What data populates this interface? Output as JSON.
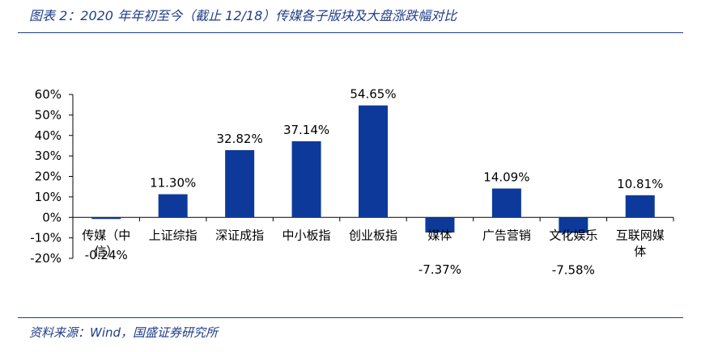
{
  "figure": {
    "title": "图表 2：2020 年年初至今（截止 12/18）传媒各子版块及大盘涨跌幅对比",
    "source": "资料来源：Wind，国盛证券研究所"
  },
  "chart_data": {
    "type": "bar",
    "title": "",
    "xlabel": "",
    "ylabel": "",
    "ylim": [
      -20,
      60
    ],
    "yticks": [
      60,
      50,
      40,
      30,
      20,
      10,
      0,
      -10,
      -20
    ],
    "ytick_labels": [
      "60%",
      "50%",
      "40%",
      "30%",
      "20%",
      "10%",
      "0%",
      "-10%",
      "-20%"
    ],
    "categories": [
      "传媒（中信）",
      "上证综指",
      "深证成指",
      "中小板指",
      "创业板指",
      "媒体",
      "广告营销",
      "文化娱乐",
      "互联网媒体"
    ],
    "values": [
      -0.24,
      11.3,
      32.82,
      37.14,
      54.65,
      -7.37,
      14.09,
      -7.58,
      10.81
    ],
    "data_labels": [
      "-0.24%",
      "11.30%",
      "32.82%",
      "37.14%",
      "54.65%",
      "-7.37%",
      "14.09%",
      "-7.58%",
      "10.81%"
    ],
    "grid": false,
    "legend": "none",
    "bar_color": "#0d3a9a"
  }
}
